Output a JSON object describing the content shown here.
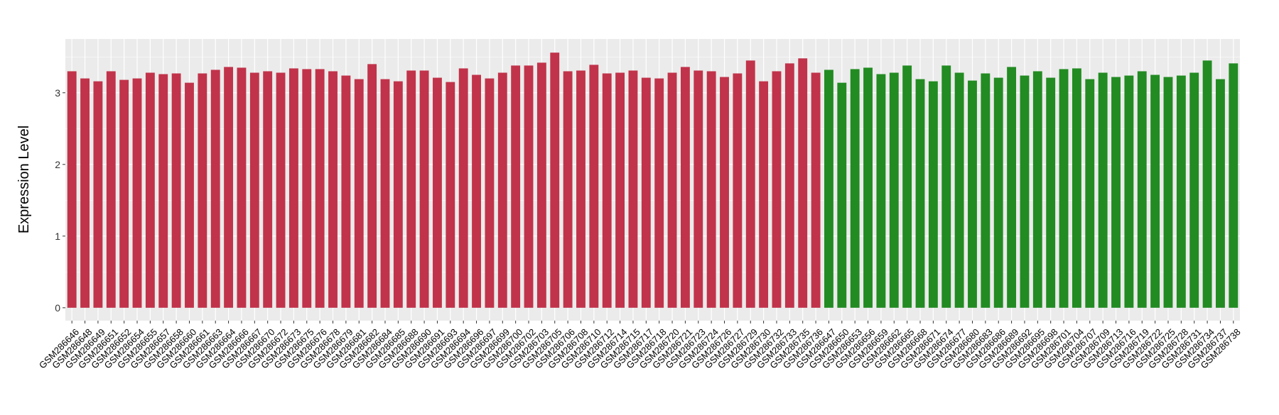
{
  "chart_data": {
    "type": "bar",
    "title": "",
    "xlabel": "",
    "ylabel": "Expression Level",
    "ylim": [
      -0.18,
      3.75
    ],
    "yticks": [
      0,
      1,
      2,
      3
    ],
    "grid": true,
    "legend": "none",
    "colors": {
      "group1": "#C1334A",
      "group2": "#228B22",
      "panel": "#EBEBEB",
      "grid": "#FFFFFF"
    },
    "categories": [
      "GSM286646",
      "GSM286648",
      "GSM286649",
      "GSM286651",
      "GSM286652",
      "GSM286654",
      "GSM286655",
      "GSM286657",
      "GSM286658",
      "GSM286660",
      "GSM286661",
      "GSM286663",
      "GSM286664",
      "GSM286666",
      "GSM286667",
      "GSM286670",
      "GSM286672",
      "GSM286673",
      "GSM286675",
      "GSM286676",
      "GSM286678",
      "GSM286679",
      "GSM286681",
      "GSM286682",
      "GSM286684",
      "GSM286685",
      "GSM286688",
      "GSM286690",
      "GSM286691",
      "GSM286693",
      "GSM286694",
      "GSM286696",
      "GSM286697",
      "GSM286699",
      "GSM286700",
      "GSM286702",
      "GSM286703",
      "GSM286705",
      "GSM286706",
      "GSM286708",
      "GSM286710",
      "GSM286712",
      "GSM286714",
      "GSM286715",
      "GSM286717",
      "GSM286718",
      "GSM286720",
      "GSM286721",
      "GSM286723",
      "GSM286724",
      "GSM286726",
      "GSM286727",
      "GSM286729",
      "GSM286730",
      "GSM286732",
      "GSM286733",
      "GSM286735",
      "GSM286736",
      "GSM286647",
      "GSM286650",
      "GSM286653",
      "GSM286656",
      "GSM286659",
      "GSM286662",
      "GSM286665",
      "GSM286668",
      "GSM286671",
      "GSM286674",
      "GSM286677",
      "GSM286680",
      "GSM286683",
      "GSM286686",
      "GSM286689",
      "GSM286692",
      "GSM286695",
      "GSM286698",
      "GSM286701",
      "GSM286704",
      "GSM286707",
      "GSM286709",
      "GSM286713",
      "GSM286716",
      "GSM286719",
      "GSM286722",
      "GSM286725",
      "GSM286728",
      "GSM286731",
      "GSM286734",
      "GSM286737",
      "GSM286738"
    ],
    "values": [
      3.3,
      3.2,
      3.16,
      3.3,
      3.18,
      3.2,
      3.28,
      3.26,
      3.27,
      3.14,
      3.27,
      3.32,
      3.36,
      3.35,
      3.28,
      3.3,
      3.28,
      3.34,
      3.33,
      3.33,
      3.3,
      3.24,
      3.19,
      3.4,
      3.19,
      3.16,
      3.31,
      3.31,
      3.21,
      3.15,
      3.34,
      3.25,
      3.2,
      3.28,
      3.38,
      3.38,
      3.42,
      3.56,
      3.3,
      3.31,
      3.39,
      3.27,
      3.28,
      3.31,
      3.21,
      3.2,
      3.28,
      3.36,
      3.31,
      3.3,
      3.22,
      3.27,
      3.45,
      3.16,
      3.3,
      3.41,
      3.48,
      3.28,
      3.32,
      3.14,
      3.33,
      3.35,
      3.26,
      3.28,
      3.38,
      3.19,
      3.16,
      3.38,
      3.28,
      3.17,
      3.27,
      3.21,
      3.36,
      3.24,
      3.3,
      3.21,
      3.33,
      3.34,
      3.19,
      3.28,
      3.22,
      3.24,
      3.3,
      3.25,
      3.22,
      3.24,
      3.28,
      3.45,
      3.19,
      3.41
    ],
    "groups": [
      "group1",
      "group1",
      "group1",
      "group1",
      "group1",
      "group1",
      "group1",
      "group1",
      "group1",
      "group1",
      "group1",
      "group1",
      "group1",
      "group1",
      "group1",
      "group1",
      "group1",
      "group1",
      "group1",
      "group1",
      "group1",
      "group1",
      "group1",
      "group1",
      "group1",
      "group1",
      "group1",
      "group1",
      "group1",
      "group1",
      "group1",
      "group1",
      "group1",
      "group1",
      "group1",
      "group1",
      "group1",
      "group1",
      "group1",
      "group1",
      "group1",
      "group1",
      "group1",
      "group1",
      "group1",
      "group1",
      "group1",
      "group1",
      "group1",
      "group1",
      "group1",
      "group1",
      "group1",
      "group1",
      "group1",
      "group1",
      "group1",
      "group1",
      "group2",
      "group2",
      "group2",
      "group2",
      "group2",
      "group2",
      "group2",
      "group2",
      "group2",
      "group2",
      "group2",
      "group2",
      "group2",
      "group2",
      "group2",
      "group2",
      "group2",
      "group2",
      "group2",
      "group2",
      "group2",
      "group2",
      "group2",
      "group2",
      "group2",
      "group2",
      "group2",
      "group2",
      "group2",
      "group2",
      "group2",
      "group2"
    ]
  }
}
